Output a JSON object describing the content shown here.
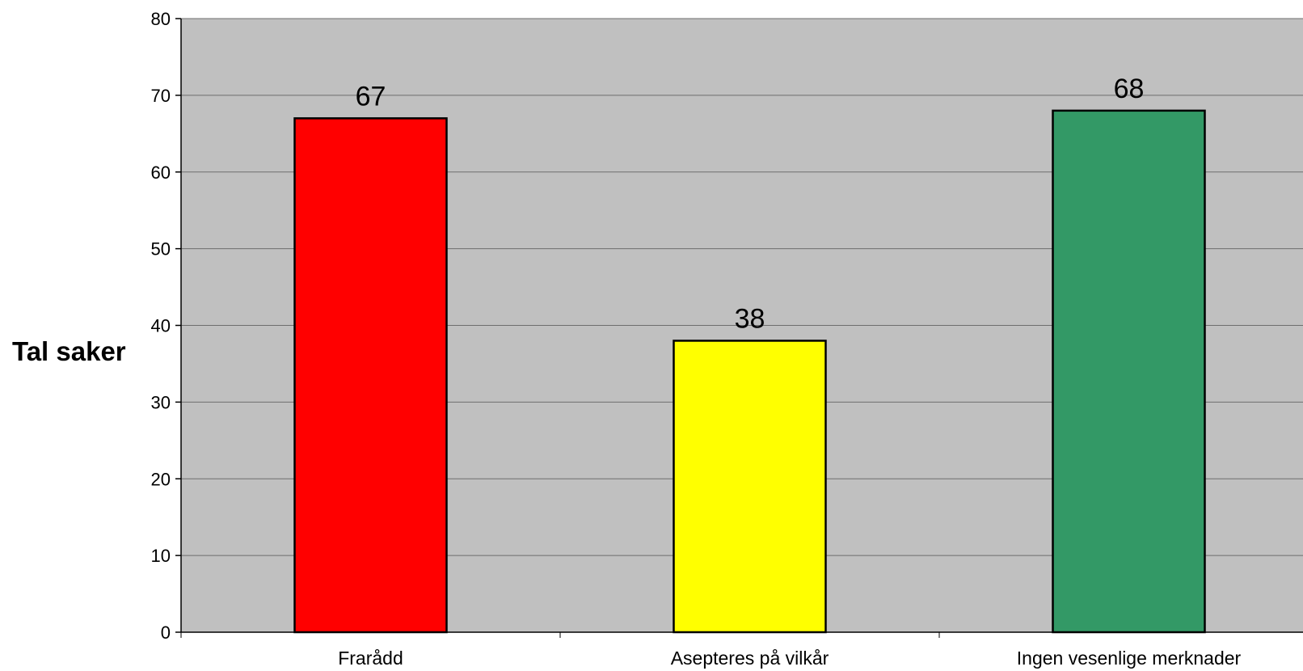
{
  "chart_data": {
    "type": "bar",
    "title": "",
    "xlabel": "",
    "ylabel": "Tal saker",
    "categories": [
      "Frarådd",
      "Asepteres på vilkår",
      "Ingen vesenlige merknader"
    ],
    "values": [
      67,
      38,
      68
    ],
    "data_labels": [
      "67",
      "38",
      "68"
    ],
    "colors": [
      "#ff0000",
      "#ffff00",
      "#339966"
    ],
    "ylim": [
      0,
      80
    ],
    "yticks": [
      0,
      10,
      20,
      30,
      40,
      50,
      60,
      70,
      80
    ],
    "grid": true,
    "legend": "none",
    "plot_background": "#c0c0c0"
  }
}
